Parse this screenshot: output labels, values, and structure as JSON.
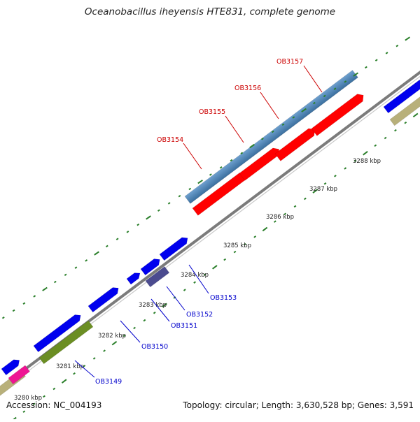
{
  "title": "Oceanobacillus iheyensis HTE831, complete genome",
  "footer": {
    "accession": "Accession: NC_004193",
    "summary": "Topology: circular; Length: 3,630,528 bp; Genes: 3,591"
  },
  "colors": {
    "forward_cds": "#0000ee",
    "forward_gene": "#4682b4",
    "reverse_gene": "#ff0000",
    "forward_label": "#0000cc",
    "reverse_label": "#cc0000",
    "backbone": "#808080",
    "ticks": "#2a7f2a"
  },
  "ruler": {
    "ticks": [
      "3280 kbp",
      "3281 kbp",
      "3282 kbp",
      "3283 kbp",
      "3284 kbp",
      "3285 kbp",
      "3286 kbp",
      "3287 kbp",
      "3288 kbp"
    ]
  },
  "gene_labels": [
    "OB3149",
    "OB3150",
    "OB3151",
    "OB3152",
    "OB3153",
    "OB3154",
    "OB3155",
    "OB3156",
    "OB3157"
  ]
}
